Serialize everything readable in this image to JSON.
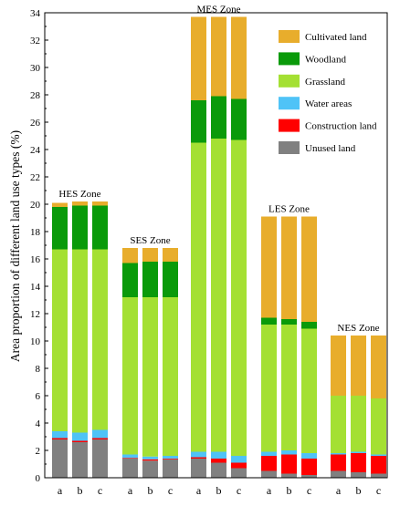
{
  "chart_data": {
    "type": "bar",
    "stacked": true,
    "ylabel": "Area proportion of different land use types (%)",
    "xlabel": "",
    "ylim": [
      0,
      34
    ],
    "yticks": [
      0,
      2,
      4,
      6,
      8,
      10,
      12,
      14,
      16,
      18,
      20,
      22,
      24,
      26,
      28,
      30,
      32,
      34
    ],
    "grid": false,
    "legend_position": "top-right",
    "categories": [
      "a",
      "b",
      "c"
    ],
    "series": [
      {
        "name": "Unused land",
        "color": "#808080"
      },
      {
        "name": "Construction land",
        "color": "#ff0000"
      },
      {
        "name": "Water areas",
        "color": "#4fc3f7"
      },
      {
        "name": "Grassland",
        "color": "#a4e033"
      },
      {
        "name": "Woodland",
        "color": "#0a9a0a"
      },
      {
        "name": "Cultivated land",
        "color": "#e8ad2c"
      }
    ],
    "legend_order": [
      "Cultivated land",
      "Woodland",
      "Grassland",
      "Water areas",
      "Construction land",
      "Unused land"
    ],
    "groups": [
      {
        "zone": "HES Zone",
        "bars": [
          {
            "category": "a",
            "values": [
              2.8,
              0.1,
              0.5,
              13.3,
              3.1,
              0.3
            ]
          },
          {
            "category": "b",
            "values": [
              2.6,
              0.1,
              0.6,
              13.4,
              3.2,
              0.3
            ]
          },
          {
            "category": "c",
            "values": [
              2.8,
              0.1,
              0.6,
              13.2,
              3.2,
              0.3
            ]
          }
        ]
      },
      {
        "zone": "SES Zone",
        "bars": [
          {
            "category": "a",
            "values": [
              1.4,
              0.05,
              0.25,
              11.5,
              2.5,
              1.1
            ]
          },
          {
            "category": "b",
            "values": [
              1.25,
              0.1,
              0.2,
              11.65,
              2.6,
              1.0
            ]
          },
          {
            "category": "c",
            "values": [
              1.35,
              0.05,
              0.2,
              11.6,
              2.6,
              1.0
            ]
          }
        ]
      },
      {
        "zone": "MES Zone",
        "bars": [
          {
            "category": "a",
            "values": [
              1.4,
              0.1,
              0.4,
              22.6,
              3.1,
              6.1
            ]
          },
          {
            "category": "b",
            "values": [
              1.1,
              0.3,
              0.5,
              22.9,
              3.1,
              5.8
            ]
          },
          {
            "category": "c",
            "values": [
              0.7,
              0.4,
              0.5,
              23.1,
              3.0,
              6.0
            ]
          }
        ]
      },
      {
        "zone": "LES Zone",
        "bars": [
          {
            "category": "a",
            "values": [
              0.5,
              1.1,
              0.3,
              9.3,
              0.5,
              7.4
            ]
          },
          {
            "category": "b",
            "values": [
              0.3,
              1.4,
              0.3,
              9.2,
              0.4,
              7.5
            ]
          },
          {
            "category": "c",
            "values": [
              0.2,
              1.2,
              0.4,
              9.1,
              0.5,
              7.7
            ]
          }
        ]
      },
      {
        "zone": "NES Zone",
        "bars": [
          {
            "category": "a",
            "values": [
              0.5,
              1.2,
              0.1,
              4.2,
              0.0,
              4.4
            ]
          },
          {
            "category": "b",
            "values": [
              0.4,
              1.4,
              0.1,
              4.1,
              0.0,
              4.4
            ]
          },
          {
            "category": "c",
            "values": [
              0.3,
              1.3,
              0.1,
              4.1,
              0.0,
              4.6
            ]
          }
        ]
      }
    ]
  }
}
